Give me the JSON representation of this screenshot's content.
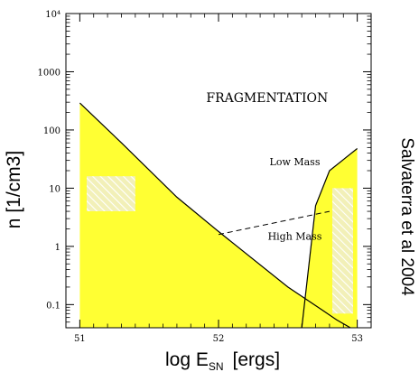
{
  "chart_data": {
    "type": "area",
    "x_scale": "linear",
    "y_scale": "log",
    "xlim": [
      50.9,
      53.1
    ],
    "ylim": [
      0.04,
      10000
    ],
    "xticks": [
      51,
      52,
      53
    ],
    "x_tick_labels": [
      "51",
      "52",
      "53"
    ],
    "yticks": [
      0.1,
      1,
      10,
      100,
      1000,
      10000
    ],
    "y_tick_labels": [
      "0.1",
      "1",
      "10",
      "100",
      "1000",
      "10⁴"
    ],
    "xlabel_main": "log E",
    "xlabel_sub": "SN",
    "xlabel_unit": "[ergs]",
    "ylabel": "n [1/cm3]",
    "credit": "Salvaterra et al 2004",
    "fill_color": "#ffff33",
    "hatch_color": "#f2f0b8",
    "annotations": [
      {
        "text": "FRAGMENTATION",
        "x": 52.35,
        "y": 300
      },
      {
        "text": "Low Mass",
        "x": 52.55,
        "y": 25
      },
      {
        "text": "High Mass",
        "x": 52.55,
        "y": 1.3
      }
    ],
    "regions": [
      {
        "name": "left",
        "boundary": [
          {
            "x": 51.0,
            "y": 290
          },
          {
            "x": 51.3,
            "y": 60
          },
          {
            "x": 51.7,
            "y": 7
          },
          {
            "x": 52.0,
            "y": 1.8
          },
          {
            "x": 52.5,
            "y": 0.2
          },
          {
            "x": 52.75,
            "y": 0.08
          },
          {
            "x": 52.85,
            "y": 0.055
          },
          {
            "x": 52.95,
            "y": 0.04
          }
        ]
      },
      {
        "name": "right",
        "boundary": [
          {
            "x": 52.6,
            "y": 0.04
          },
          {
            "x": 52.7,
            "y": 5
          },
          {
            "x": 52.8,
            "y": 20
          },
          {
            "x": 53.0,
            "y": 48
          }
        ]
      }
    ],
    "dashed_line": [
      {
        "x": 52.0,
        "y": 1.6
      },
      {
        "x": 52.8,
        "y": 4
      }
    ],
    "hatched_boxes": [
      {
        "x0": 51.05,
        "x1": 51.4,
        "y0": 4,
        "y1": 16
      },
      {
        "x0": 52.82,
        "x1": 52.97,
        "y0": 0.07,
        "y1": 10
      }
    ]
  }
}
